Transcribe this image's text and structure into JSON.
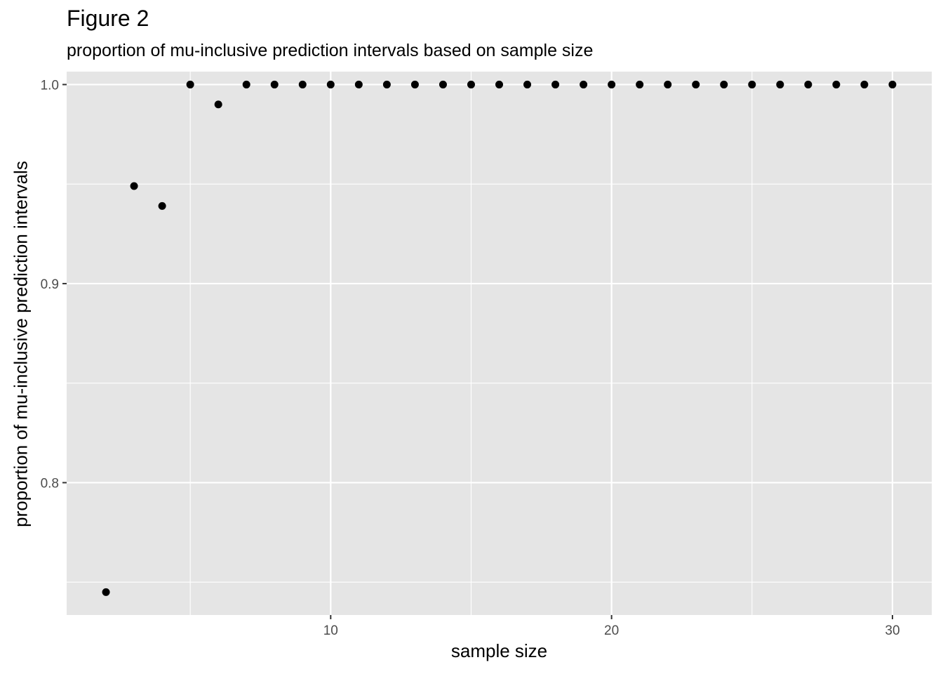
{
  "chart_data": {
    "type": "scatter",
    "title": "Figure 2",
    "subtitle": "proportion of mu-inclusive prediction intervals based on sample size",
    "xlabel": "sample size",
    "ylabel": "proportion of mu-inclusive prediction intervals",
    "xlim": [
      0.6,
      31.4
    ],
    "ylim": [
      0.7335,
      1.0065
    ],
    "x_ticks": [
      10,
      20,
      30
    ],
    "x_tick_labels": [
      "10",
      "20",
      "30"
    ],
    "x_minor_ticks": [
      5,
      15,
      25
    ],
    "y_ticks": [
      0.8,
      0.9,
      1.0
    ],
    "y_tick_labels": [
      "0.8",
      "0.9",
      "1.0"
    ],
    "y_minor_ticks": [
      0.75,
      0.85,
      0.95
    ],
    "grid": true,
    "legend": "none",
    "colors": {
      "panel": "#e5e5e5",
      "grid": "#ffffff",
      "point": "#000000",
      "tick_text": "#4d4d4d"
    },
    "x": [
      2,
      3,
      4,
      5,
      6,
      7,
      8,
      9,
      10,
      11,
      12,
      13,
      14,
      15,
      16,
      17,
      18,
      19,
      20,
      21,
      22,
      23,
      24,
      25,
      26,
      27,
      28,
      29,
      30
    ],
    "y": [
      0.745,
      0.949,
      0.939,
      1.0,
      0.99,
      1.0,
      1.0,
      1.0,
      1.0,
      1.0,
      1.0,
      1.0,
      1.0,
      1.0,
      1.0,
      1.0,
      1.0,
      1.0,
      1.0,
      1.0,
      1.0,
      1.0,
      1.0,
      1.0,
      1.0,
      1.0,
      1.0,
      1.0,
      1.0
    ]
  }
}
